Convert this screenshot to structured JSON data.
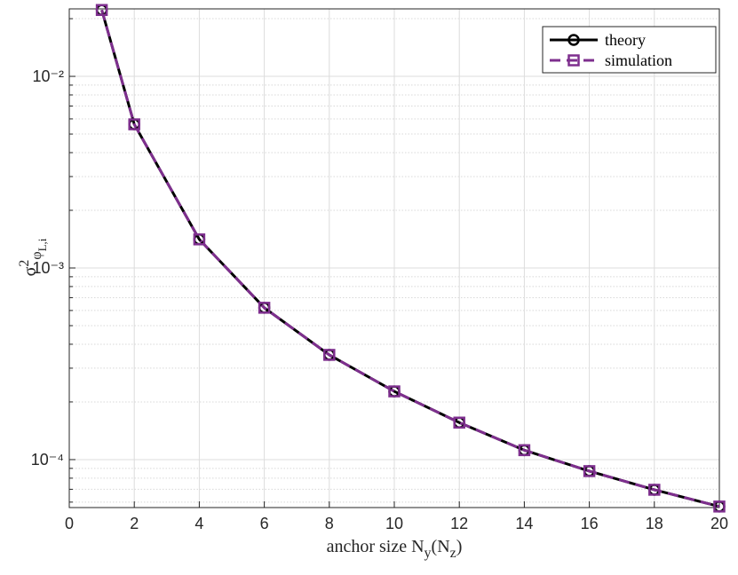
{
  "chart_data": {
    "type": "line",
    "x": [
      1,
      2,
      4,
      6,
      8,
      10,
      12,
      14,
      16,
      18,
      20
    ],
    "series": [
      {
        "name": "theory",
        "color": "#000000",
        "dash": "solid",
        "marker": "circle",
        "values": [
          0.0222,
          0.00562,
          0.00141,
          0.00062,
          0.000352,
          0.000227,
          0.000156,
          0.000112,
          8.71e-05,
          6.96e-05,
          5.69e-05
        ]
      },
      {
        "name": "simulation",
        "color": "#7e2f8e",
        "dash": "dashed",
        "marker": "square",
        "values": [
          0.0222,
          0.00562,
          0.00141,
          0.00062,
          0.000352,
          0.000227,
          0.000156,
          0.000112,
          8.71e-05,
          6.96e-05,
          5.69e-05
        ]
      }
    ],
    "xlim": [
      0,
      20
    ],
    "xticks": [
      0,
      2,
      4,
      6,
      8,
      10,
      12,
      14,
      16,
      18,
      20
    ],
    "ylim": [
      5.62e-05,
      0.0225
    ],
    "log_y": true,
    "yticks": [
      {
        "value": 0.0001,
        "label": "10⁻⁴"
      },
      {
        "value": 0.001,
        "label": "10⁻³"
      },
      {
        "value": 0.01,
        "label": "10⁻²"
      }
    ],
    "yminorticks": [
      6e-05,
      7e-05,
      8e-05,
      9e-05,
      0.0002,
      0.0003,
      0.0004,
      0.0005,
      0.0006,
      0.0007,
      0.0008,
      0.0009,
      0.002,
      0.003,
      0.004,
      0.005,
      0.006,
      0.007,
      0.008,
      0.009,
      0.02
    ],
    "grid": true,
    "minor_grid": true,
    "legend": "northeast",
    "xlabel_parts": [
      {
        "text": "anchor size N"
      },
      {
        "text": "y",
        "sub": true
      },
      {
        "text": "(N"
      },
      {
        "text": "z",
        "sub": true
      },
      {
        "text": ")"
      }
    ],
    "ylabel_parts": [
      {
        "text": "σ"
      },
      {
        "text": "2",
        "sup": true
      },
      {
        "text": "φ",
        "sub": true
      },
      {
        "text": "L,i",
        "sub2": true
      }
    ]
  }
}
